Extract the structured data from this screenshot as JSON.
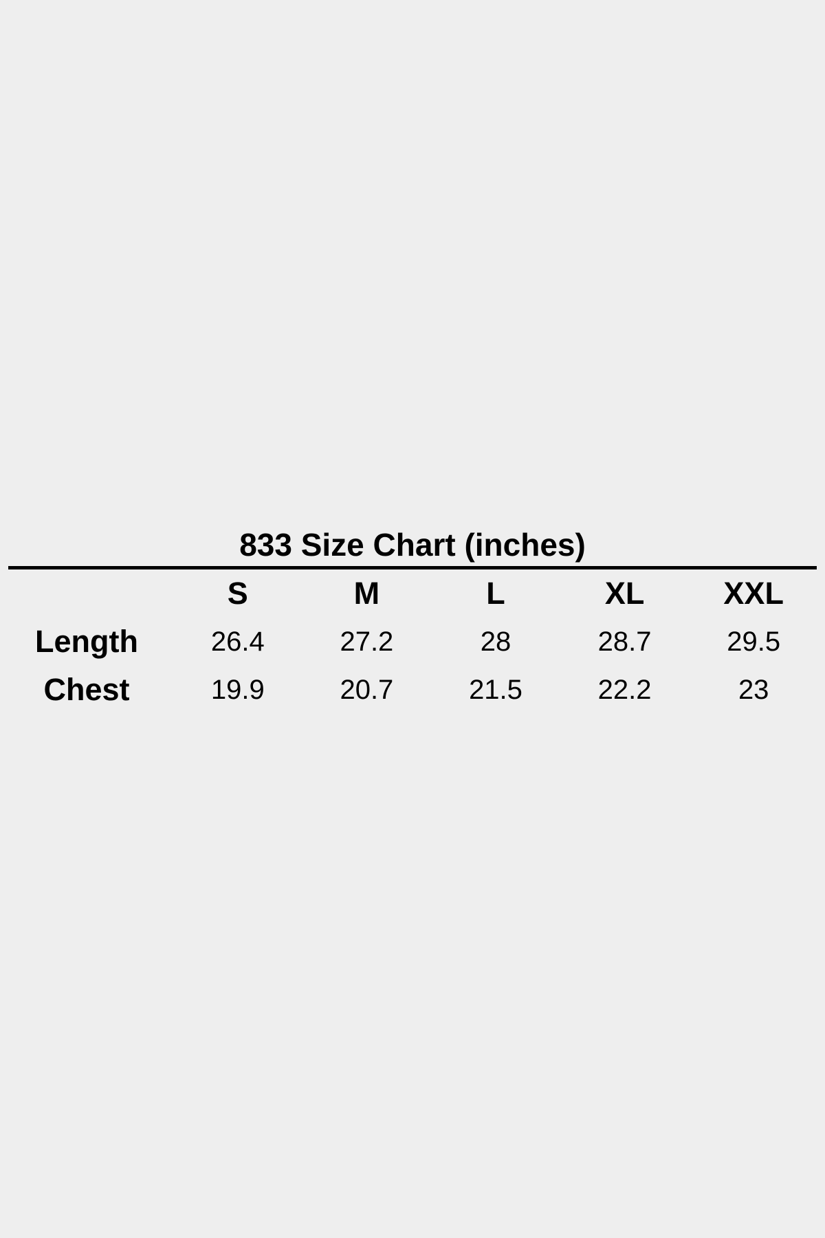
{
  "page": {
    "background_color": "#eeeeee",
    "text_color": "#000000",
    "rule_color": "#000000"
  },
  "chart_data": {
    "type": "table",
    "title": "833 Size Chart (inches)",
    "columns": [
      "",
      "S",
      "M",
      "L",
      "XL",
      "XXL"
    ],
    "rows": [
      {
        "label": "Length",
        "values": [
          "26.4",
          "27.2",
          "28",
          "28.7",
          "29.5"
        ]
      },
      {
        "label": "Chest",
        "values": [
          "19.9",
          "20.7",
          "21.5",
          "22.2",
          "23"
        ]
      }
    ],
    "layout": {
      "grid": "off",
      "legend": "none",
      "title_position": "top-center",
      "units": "inches"
    }
  }
}
